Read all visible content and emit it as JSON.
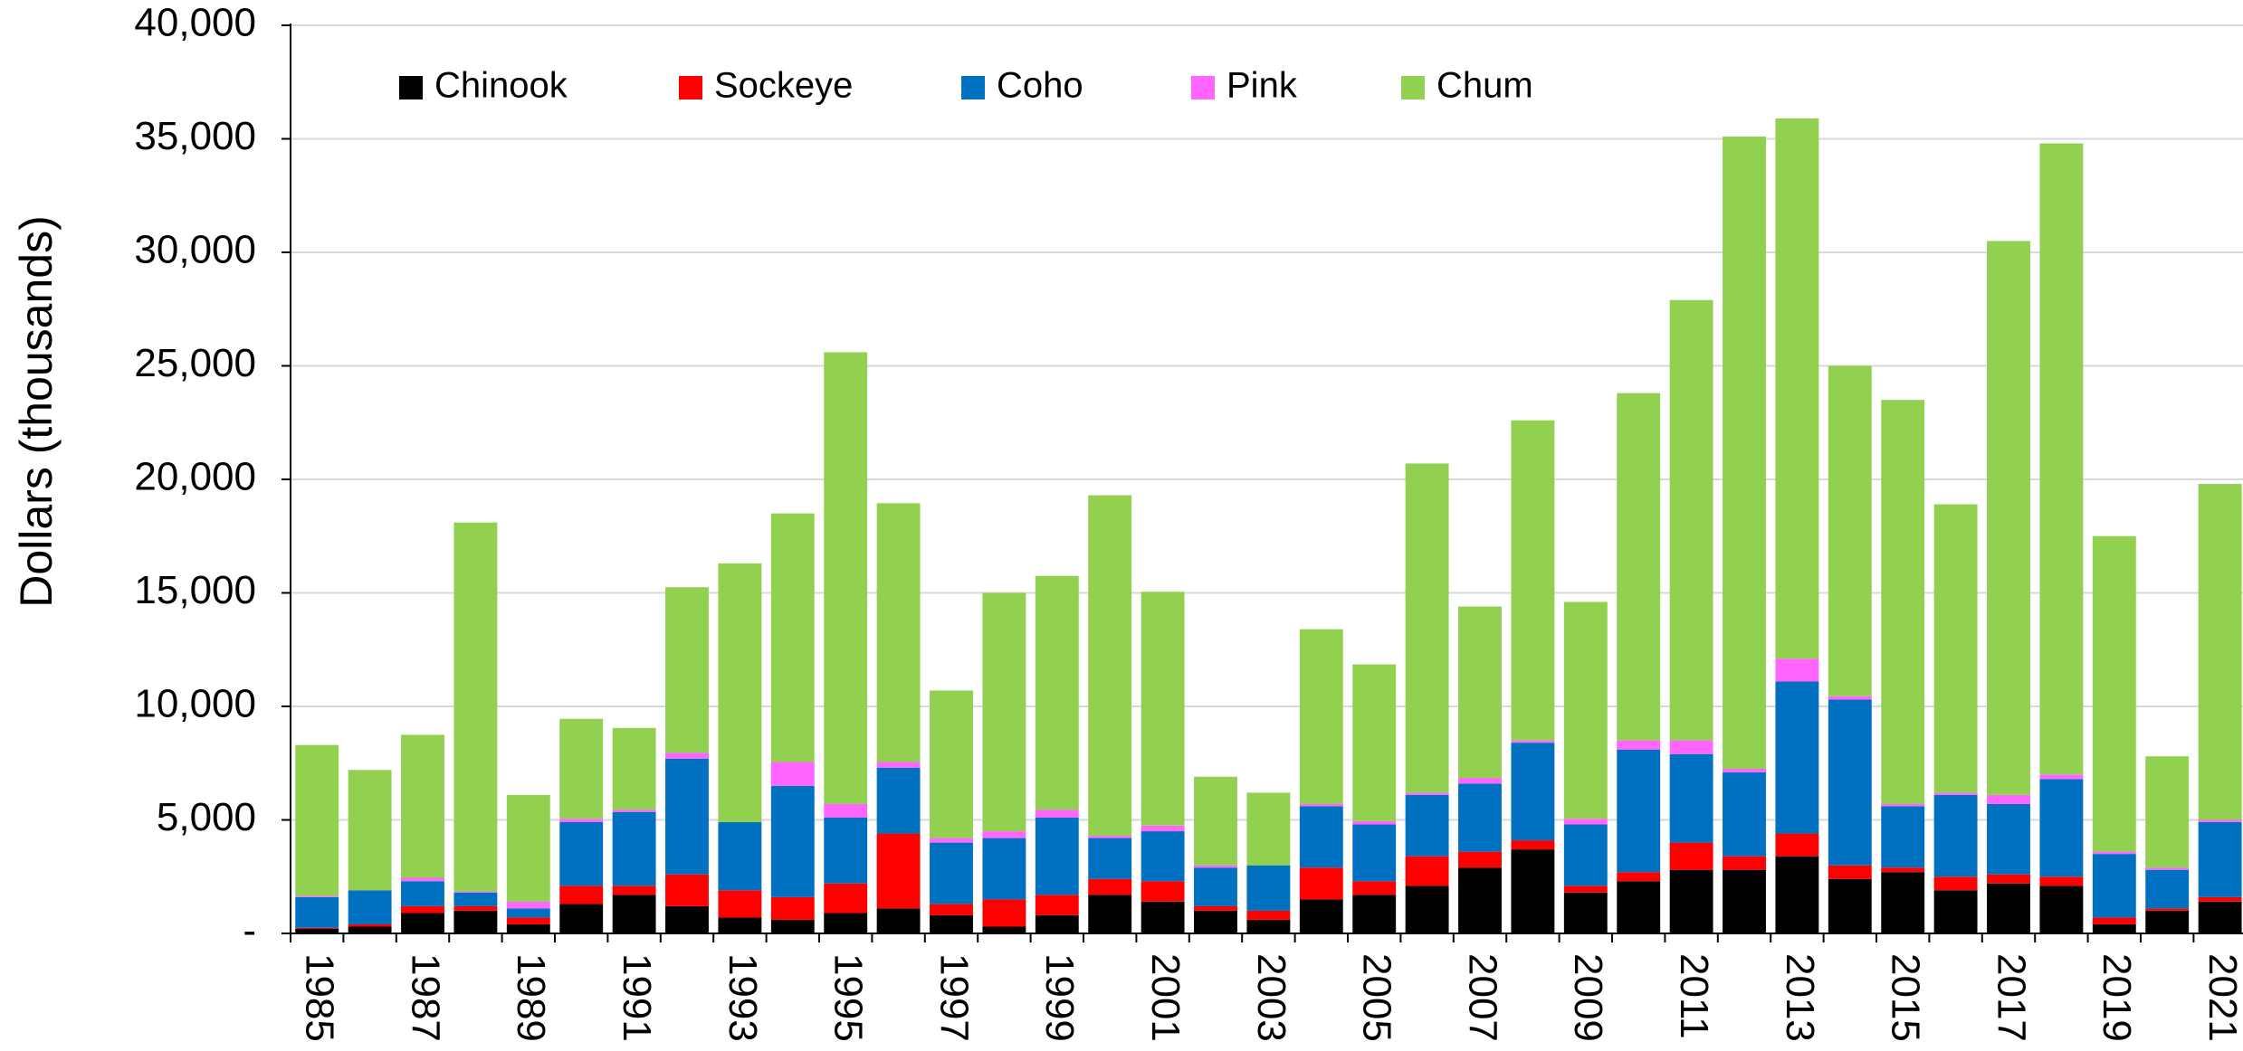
{
  "chart_data": {
    "type": "stacked_bar",
    "y_label": "Dollars (thousands)",
    "categories": [
      "1985",
      null,
      "1987",
      null,
      "1989",
      null,
      "1991",
      null,
      "1993",
      null,
      "1995",
      null,
      "1997",
      null,
      "1999",
      null,
      "2001",
      null,
      "2003",
      null,
      "2005",
      null,
      "2007",
      null,
      "2009",
      null,
      "2011",
      null,
      "2013",
      null,
      "2015",
      null,
      "2017",
      null,
      "2019",
      null,
      "2021"
    ],
    "series": [
      {
        "name": "Chinook",
        "color": "#000000",
        "values": [
          200,
          300,
          900,
          1000,
          400,
          1300,
          1700,
          1200,
          700,
          600,
          900,
          1100,
          800,
          300,
          800,
          1700,
          1400,
          1000,
          600,
          1500,
          1700,
          2100,
          2900,
          3700,
          1800,
          2300,
          2800,
          2800,
          3400,
          2400,
          2700,
          1900,
          2200,
          2100,
          400,
          1000,
          1400
        ]
      },
      {
        "name": "Sockeye",
        "color": "#ff0000",
        "values": [
          50,
          100,
          300,
          200,
          300,
          800,
          400,
          1400,
          1200,
          1000,
          1300,
          3300,
          500,
          1200,
          900,
          700,
          900,
          200,
          400,
          1400,
          600,
          1300,
          700,
          400,
          300,
          400,
          1200,
          600,
          1000,
          600,
          200,
          600,
          400,
          400,
          300,
          100,
          200
        ]
      },
      {
        "name": "Coho",
        "color": "#0070c0",
        "values": [
          1350,
          1500,
          1100,
          600,
          400,
          2800,
          3250,
          5100,
          3000,
          4900,
          2900,
          2900,
          2700,
          2700,
          3400,
          1800,
          2200,
          1700,
          2000,
          2700,
          2500,
          2700,
          3000,
          4300,
          2700,
          5400,
          3900,
          3700,
          6700,
          7300,
          2700,
          3600,
          3100,
          4300,
          2800,
          1700,
          3300
        ]
      },
      {
        "name": "Pink",
        "color": "#ff66ff",
        "values": [
          50,
          0,
          150,
          50,
          300,
          150,
          100,
          250,
          0,
          1050,
          600,
          250,
          200,
          300,
          350,
          100,
          250,
          100,
          0,
          100,
          150,
          100,
          250,
          100,
          250,
          400,
          600,
          150,
          1000,
          150,
          100,
          100,
          400,
          200,
          100,
          100,
          100
        ]
      },
      {
        "name": "Chum",
        "color": "#92d050",
        "values": [
          6650,
          5300,
          6300,
          16250,
          4700,
          4400,
          3600,
          7300,
          11400,
          10950,
          19900,
          11400,
          6500,
          10500,
          10300,
          15000,
          10300,
          3900,
          3200,
          7700,
          6900,
          14500,
          7550,
          14100,
          9550,
          15300,
          19400,
          27850,
          23800,
          14550,
          17800,
          12700,
          24400,
          27800,
          13900,
          4900,
          14800
        ]
      }
    ],
    "ylim": [
      0,
      40000
    ],
    "yticks": [
      {
        "value": 0,
        "label": "-"
      },
      {
        "value": 5000,
        "label": "5,000"
      },
      {
        "value": 10000,
        "label": "10,000"
      },
      {
        "value": 15000,
        "label": "15,000"
      },
      {
        "value": 20000,
        "label": "20,000"
      },
      {
        "value": 25000,
        "label": "25,000"
      },
      {
        "value": 30000,
        "label": "30,000"
      },
      {
        "value": 35000,
        "label": "35,000"
      },
      {
        "value": 40000,
        "label": "40,000"
      }
    ],
    "grid": true,
    "legend": "top"
  }
}
